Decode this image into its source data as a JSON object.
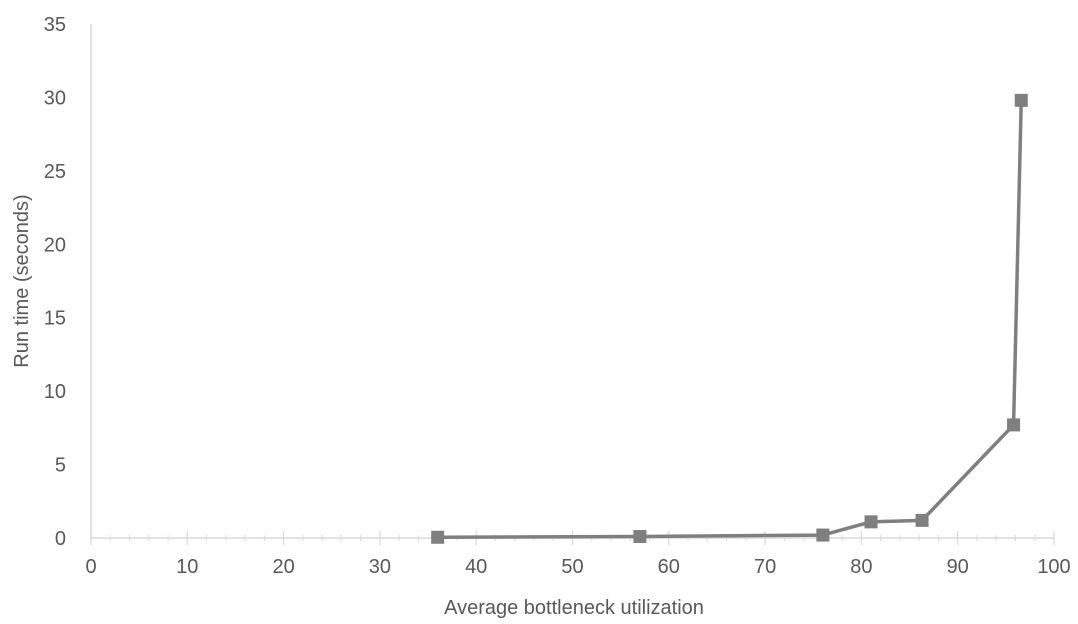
{
  "chart_data": {
    "type": "scatter",
    "title": "",
    "xlabel": "Average bottleneck utilization",
    "ylabel": "Run time (seconds)",
    "xlim": [
      0,
      100
    ],
    "ylim": [
      0,
      35
    ],
    "x_major_ticks": [
      0,
      10,
      20,
      30,
      40,
      50,
      60,
      70,
      80,
      90,
      100
    ],
    "y_major_ticks": [
      0,
      5,
      10,
      15,
      20,
      25,
      30,
      35
    ],
    "x_minor_step": 2,
    "grid": false,
    "legend": "none",
    "series": [
      {
        "marker": "square",
        "line": "straight",
        "color": "#7f7f7f",
        "points": [
          {
            "x": 36,
            "y": 0.05
          },
          {
            "x": 57,
            "y": 0.1
          },
          {
            "x": 76,
            "y": 0.2
          },
          {
            "x": 81,
            "y": 1.1
          },
          {
            "x": 86.3,
            "y": 1.2
          },
          {
            "x": 95.8,
            "y": 7.7
          },
          {
            "x": 96.6,
            "y": 29.8
          }
        ]
      }
    ],
    "colors": {
      "axis": "#d9d9d9",
      "text": "#595959"
    }
  }
}
